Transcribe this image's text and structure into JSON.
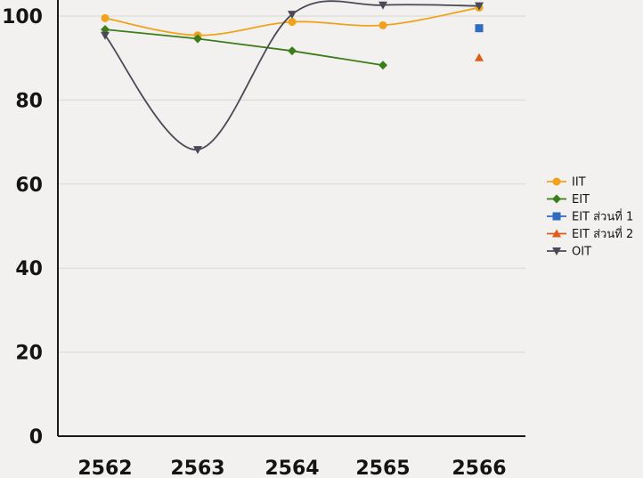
{
  "chart_data": {
    "type": "line",
    "title": "",
    "xlabel": "",
    "ylabel": "",
    "categories": [
      "2562",
      "2563",
      "2564",
      "2565",
      "2566"
    ],
    "ylim": [
      0,
      100
    ],
    "yticks": [
      "0",
      "20",
      "40",
      "60",
      "80",
      "100"
    ],
    "y_top_label": "100",
    "grid": "horizontal",
    "legend_position": "right",
    "series": [
      {
        "name": "IIT",
        "color": "#f0a21c",
        "marker": "circle",
        "smooth": true,
        "values": [
          99.5,
          95.4,
          98.6,
          97.8,
          102
        ]
      },
      {
        "name": "EIT",
        "color": "#3a7d1a",
        "marker": "diamond",
        "smooth": false,
        "values": [
          96.8,
          94.6,
          91.7,
          88.3,
          null
        ]
      },
      {
        "name": "EIT ส่วนที่ 1",
        "color": "#2e6cc0",
        "marker": "square",
        "smooth": false,
        "values": [
          null,
          null,
          null,
          null,
          97.1
        ]
      },
      {
        "name": "EIT ส่วนที่ 2",
        "color": "#e05a1a",
        "marker": "triangle-up",
        "smooth": false,
        "values": [
          null,
          null,
          null,
          null,
          90.1
        ]
      },
      {
        "name": "OIT",
        "color": "#4a4a56",
        "marker": "triangle-down",
        "smooth": true,
        "values": [
          95.4,
          68.2,
          100.4,
          102.6,
          102.4
        ]
      }
    ]
  }
}
